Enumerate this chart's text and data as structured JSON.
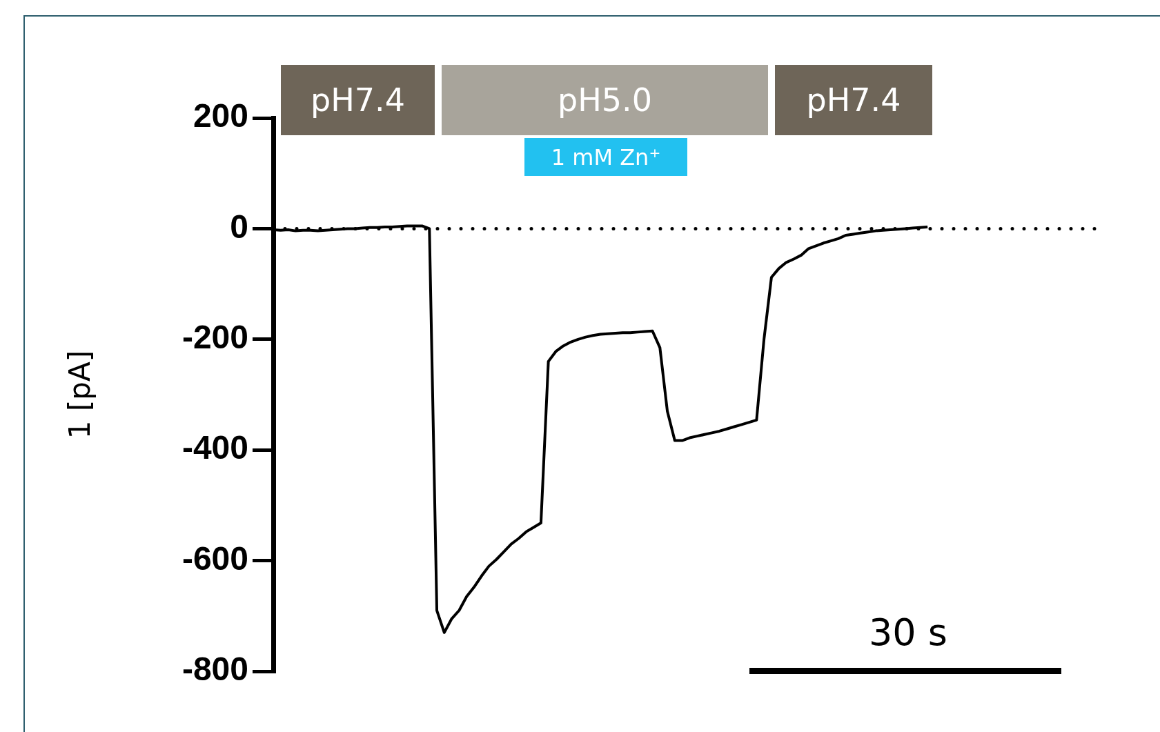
{
  "chart_data": {
    "type": "line",
    "ylabel": "1 [pA]",
    "ylim": [
      -800,
      200
    ],
    "yticks": [
      -800,
      -600,
      -400,
      -200,
      0,
      200
    ],
    "tick_labels": "y",
    "grid": false,
    "legend": false,
    "marker": "none",
    "categories": [
      null,
      null,
      null,
      null,
      null,
      null,
      null,
      null,
      null,
      null,
      null,
      null,
      null,
      null,
      null,
      null,
      null,
      null,
      null,
      null,
      null,
      null,
      null,
      null,
      null,
      null,
      null,
      null,
      null,
      null,
      null,
      null,
      null,
      null,
      null,
      null,
      null,
      null,
      null,
      null,
      null,
      null,
      null,
      null,
      null,
      null,
      null,
      null,
      null,
      null,
      null,
      null,
      null,
      null,
      null,
      null,
      null,
      null,
      null,
      null,
      null,
      null,
      null,
      null,
      null,
      null,
      null,
      null,
      null,
      null,
      null,
      null,
      null,
      null,
      null,
      null,
      null,
      null,
      null,
      null,
      null,
      null,
      null,
      null,
      null,
      null,
      null,
      null,
      null,
      null,
      null,
      null,
      null,
      null,
      null,
      null,
      null,
      null,
      null,
      null,
      null,
      null,
      null,
      null,
      null,
      null,
      null,
      null,
      null,
      null,
      null,
      null
    ],
    "series": [
      {
        "color": "#000000",
        "values": [
          -2,
          -3,
          -2,
          -4,
          -3,
          -3,
          -4,
          -3,
          -2,
          -1,
          0,
          0,
          1,
          2,
          2,
          3,
          3,
          4,
          5,
          5,
          5,
          0,
          -690,
          -730,
          -705,
          -690,
          -665,
          -648,
          -628,
          -610,
          -598,
          -584,
          -570,
          -560,
          -548,
          -540,
          -532,
          -240,
          -222,
          -212,
          -205,
          -200,
          -196,
          -193,
          -191,
          -190,
          -189,
          -188,
          -188,
          -187,
          -186,
          -185,
          -215,
          -330,
          -383,
          -383,
          -378,
          -375,
          -372,
          -369,
          -366,
          -362,
          -358,
          -354,
          -350,
          -346,
          -200,
          -88,
          -72,
          -61,
          -55,
          -48,
          -36,
          -31,
          -26,
          -22,
          -18,
          -12,
          -10,
          -8,
          -6,
          -4,
          -3,
          -2,
          -1,
          0,
          1,
          2,
          3,
          null,
          null,
          null,
          null,
          null,
          null,
          null,
          null,
          null,
          null,
          null,
          null,
          null,
          null,
          null,
          null,
          null,
          null,
          null,
          null,
          null,
          null,
          null
        ]
      }
    ],
    "ref_lines": [
      {
        "axis": "y",
        "value": 0,
        "line_style": "dotted",
        "color": "#000000"
      }
    ],
    "annotations": [
      "pH7.4",
      "pH5.0",
      "pH7.4",
      "1 mM Zn⁺",
      "30 s"
    ]
  }
}
